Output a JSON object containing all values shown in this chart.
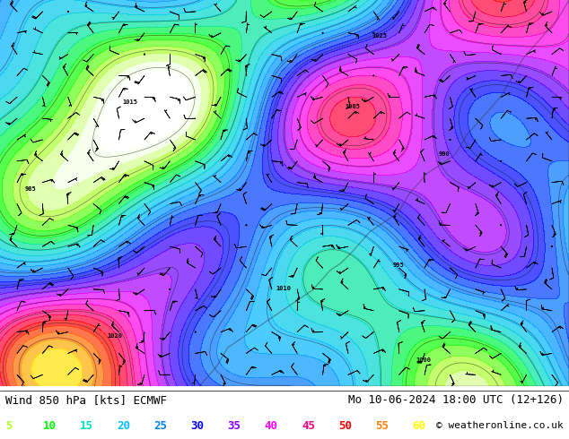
{
  "title_left": "Wind 850 hPa [kts] ECMWF",
  "title_right": "Mo 10-06-2024 18:00 UTC (12+126)",
  "copyright": "© weatheronline.co.uk",
  "legend_values": [
    5,
    10,
    15,
    20,
    25,
    30,
    35,
    40,
    45,
    50,
    55,
    60
  ],
  "legend_colors": [
    "#adff2f",
    "#00ff00",
    "#00e0c0",
    "#00bfff",
    "#0080ff",
    "#0000ff",
    "#8000ff",
    "#ff00ff",
    "#ff0080",
    "#ff0000",
    "#ff8000",
    "#ffff00"
  ],
  "bg_color": "#ffffff",
  "map_bg": "#f0f0f0",
  "bottom_bar_height": 0.1,
  "fig_width": 6.34,
  "fig_height": 4.9,
  "map_image_placeholder": true
}
